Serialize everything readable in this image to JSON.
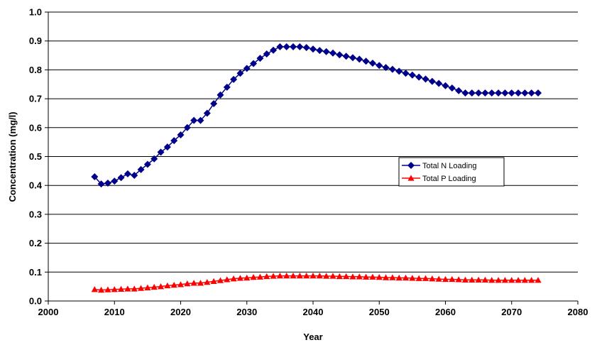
{
  "chart_data": {
    "type": "line",
    "title": "",
    "xlabel": "Year",
    "ylabel": "Concentration (mg/l)",
    "xlim": [
      2000,
      2080
    ],
    "ylim": [
      0,
      1.0
    ],
    "xticks": [
      "2000",
      "2010",
      "2020",
      "2030",
      "2040",
      "2050",
      "2060",
      "2070",
      "2080"
    ],
    "yticks": [
      "0.0",
      "0.1",
      "0.2",
      "0.3",
      "0.4",
      "0.5",
      "0.6",
      "0.7",
      "0.8",
      "0.9",
      "1.0"
    ],
    "grid": "horizontal",
    "legend_position": "center-right",
    "x": [
      2007,
      2008,
      2009,
      2010,
      2011,
      2012,
      2013,
      2014,
      2015,
      2016,
      2017,
      2018,
      2019,
      2020,
      2021,
      2022,
      2023,
      2024,
      2025,
      2026,
      2027,
      2028,
      2029,
      2030,
      2031,
      2032,
      2033,
      2034,
      2035,
      2036,
      2037,
      2038,
      2039,
      2040,
      2041,
      2042,
      2043,
      2044,
      2045,
      2046,
      2047,
      2048,
      2049,
      2050,
      2051,
      2052,
      2053,
      2054,
      2055,
      2056,
      2057,
      2058,
      2059,
      2060,
      2061,
      2062,
      2063,
      2064,
      2065,
      2066,
      2067,
      2068,
      2069,
      2070,
      2071,
      2072,
      2073,
      2074
    ],
    "series": [
      {
        "name": "Total N Loading",
        "color": "#00008B",
        "marker": "diamond",
        "values": [
          0.43,
          0.405,
          0.408,
          0.415,
          0.427,
          0.44,
          0.435,
          0.455,
          0.473,
          0.492,
          0.515,
          0.533,
          0.555,
          0.575,
          0.6,
          0.625,
          0.625,
          0.65,
          0.683,
          0.713,
          0.74,
          0.767,
          0.788,
          0.805,
          0.822,
          0.84,
          0.855,
          0.868,
          0.88,
          0.88,
          0.88,
          0.88,
          0.877,
          0.872,
          0.867,
          0.863,
          0.858,
          0.852,
          0.847,
          0.842,
          0.837,
          0.83,
          0.823,
          0.815,
          0.808,
          0.802,
          0.795,
          0.788,
          0.782,
          0.775,
          0.768,
          0.76,
          0.753,
          0.745,
          0.737,
          0.728,
          0.72,
          0.72,
          0.72,
          0.72,
          0.72,
          0.72,
          0.72,
          0.72,
          0.72,
          0.72,
          0.72,
          0.72
        ]
      },
      {
        "name": "Total P Loading",
        "color": "#FF0000",
        "marker": "triangle",
        "values": [
          0.04,
          0.038,
          0.039,
          0.04,
          0.041,
          0.042,
          0.042,
          0.044,
          0.046,
          0.048,
          0.05,
          0.053,
          0.055,
          0.057,
          0.06,
          0.062,
          0.062,
          0.065,
          0.068,
          0.071,
          0.074,
          0.077,
          0.079,
          0.08,
          0.082,
          0.083,
          0.085,
          0.086,
          0.087,
          0.087,
          0.087,
          0.087,
          0.087,
          0.087,
          0.087,
          0.086,
          0.086,
          0.085,
          0.085,
          0.084,
          0.084,
          0.083,
          0.083,
          0.082,
          0.081,
          0.081,
          0.08,
          0.08,
          0.079,
          0.078,
          0.078,
          0.077,
          0.076,
          0.075,
          0.075,
          0.074,
          0.073,
          0.073,
          0.073,
          0.073,
          0.072,
          0.072,
          0.072,
          0.072,
          0.072,
          0.072,
          0.072,
          0.072
        ]
      }
    ]
  }
}
